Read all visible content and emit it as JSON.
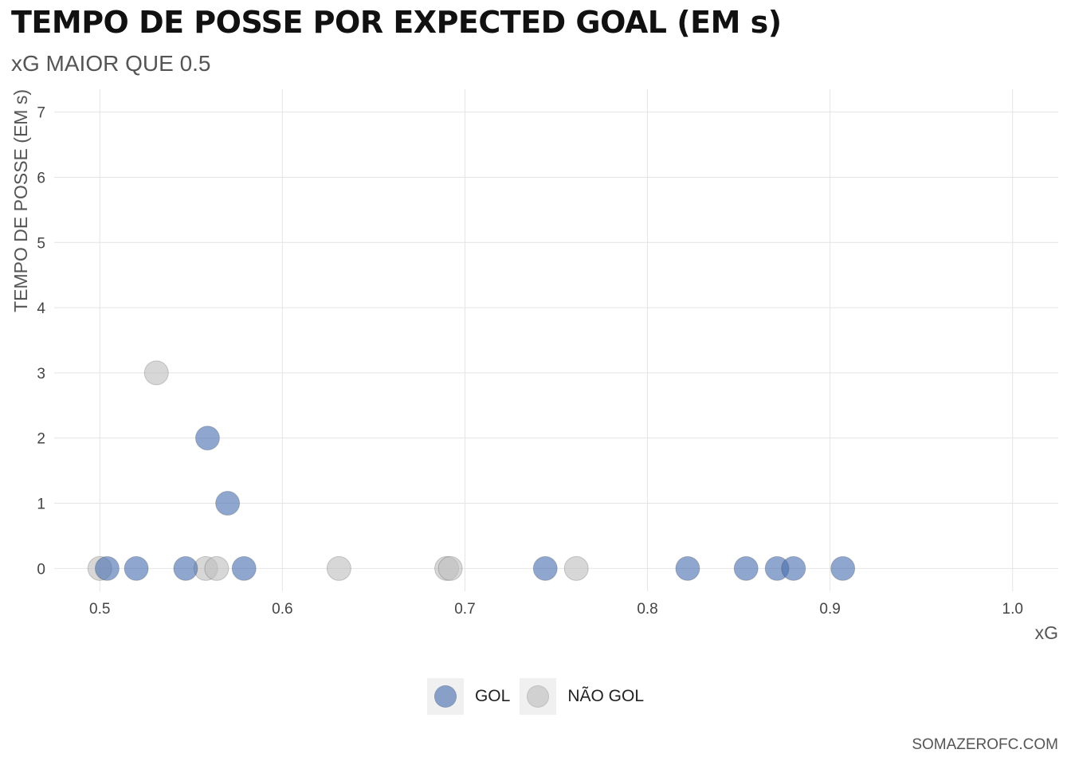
{
  "header": {
    "title": "TEMPO DE POSSE POR EXPECTED GOAL (EM s)",
    "subtitle": "xG MAIOR QUE 0.5"
  },
  "caption": "SOMAZEROFC.COM",
  "colors": {
    "gol": "#4a6fb0",
    "nao_gol": "#bfbfbf",
    "grid": "#e4e4e4",
    "axis_text": "#444444"
  },
  "chart_data": {
    "type": "scatter",
    "title": "TEMPO DE POSSE POR EXPECTED GOAL (EM s)",
    "subtitle": "xG MAIOR QUE 0.5",
    "xlabel": "xG",
    "ylabel": "TEMPO DE POSSE (EM s)",
    "xlim": [
      0.475,
      1.025
    ],
    "ylim": [
      -0.35,
      7.35
    ],
    "x_ticks": [
      0.5,
      0.6,
      0.7,
      0.8,
      0.9,
      1.0
    ],
    "x_tick_labels": [
      "0.5",
      "0.6",
      "0.7",
      "0.8",
      "0.9",
      "1.0"
    ],
    "y_ticks": [
      0,
      1,
      2,
      3,
      4,
      5,
      6,
      7
    ],
    "y_tick_labels": [
      "0",
      "1",
      "2",
      "3",
      "4",
      "5",
      "6",
      "7"
    ],
    "grid": true,
    "legend_position": "bottom",
    "series": [
      {
        "name": "NÃO GOL",
        "color": "#bfbfbf",
        "points": [
          {
            "x": 0.5,
            "y": 0
          },
          {
            "x": 0.531,
            "y": 3
          },
          {
            "x": 0.558,
            "y": 0
          },
          {
            "x": 0.564,
            "y": 0
          },
          {
            "x": 0.631,
            "y": 0
          },
          {
            "x": 0.69,
            "y": 0
          },
          {
            "x": 0.692,
            "y": 0
          },
          {
            "x": 0.761,
            "y": 0
          }
        ]
      },
      {
        "name": "GOL",
        "color": "#4a6fb0",
        "points": [
          {
            "x": 0.504,
            "y": 0
          },
          {
            "x": 0.52,
            "y": 0
          },
          {
            "x": 0.547,
            "y": 0
          },
          {
            "x": 0.559,
            "y": 2
          },
          {
            "x": 0.57,
            "y": 1
          },
          {
            "x": 0.579,
            "y": 0
          },
          {
            "x": 0.744,
            "y": 0
          },
          {
            "x": 0.822,
            "y": 0
          },
          {
            "x": 0.854,
            "y": 0
          },
          {
            "x": 0.871,
            "y": 0
          },
          {
            "x": 0.88,
            "y": 0
          },
          {
            "x": 0.907,
            "y": 0
          }
        ]
      }
    ]
  },
  "legend": {
    "items": [
      {
        "label": "GOL",
        "color": "#4a6fb0"
      },
      {
        "label": "NÃO GOL",
        "color": "#bfbfbf"
      }
    ]
  }
}
